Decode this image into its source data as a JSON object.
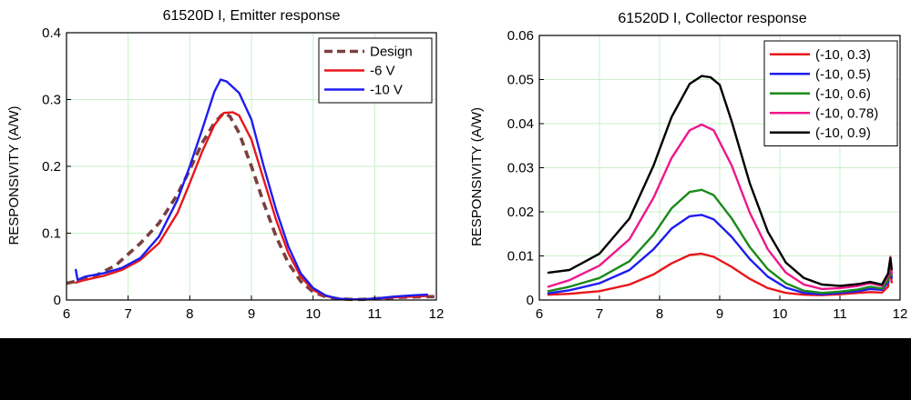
{
  "chart_data": [
    {
      "type": "line",
      "title": "61520D I, Emitter response",
      "xlabel": "",
      "ylabel": "RESPONSIVITY (A/W)",
      "xlim": [
        6,
        12
      ],
      "ylim": [
        0,
        0.4
      ],
      "xticks": [
        6,
        7,
        8,
        9,
        10,
        11,
        12
      ],
      "yticks": [
        0,
        0.1,
        0.2,
        0.3,
        0.4
      ],
      "xtick_labels": [
        "6",
        "7",
        "8",
        "9",
        "10",
        "11",
        "12"
      ],
      "ytick_labels": [
        "0",
        "0.1",
        "0.2",
        "0.3",
        "0.4"
      ],
      "grid": true,
      "legend": "top-right",
      "series": [
        {
          "name": "Design",
          "color": "#7b3f3f",
          "dash": true,
          "x": [
            6.0,
            6.4,
            6.8,
            7.2,
            7.5,
            7.8,
            8.0,
            8.2,
            8.4,
            8.55,
            8.65,
            8.8,
            9.0,
            9.2,
            9.4,
            9.6,
            9.8,
            10.0,
            10.2,
            10.4,
            10.6,
            10.8,
            11.0,
            11.4,
            11.8,
            12.0
          ],
          "y": [
            0.025,
            0.033,
            0.052,
            0.085,
            0.115,
            0.158,
            0.195,
            0.235,
            0.265,
            0.28,
            0.275,
            0.25,
            0.2,
            0.145,
            0.095,
            0.055,
            0.028,
            0.012,
            0.005,
            0.002,
            0.001,
            0.001,
            0.002,
            0.004,
            0.005,
            0.005
          ]
        },
        {
          "name": "-6 V",
          "color": "#e8161b",
          "dash": false,
          "x": [
            6.15,
            6.3,
            6.6,
            6.9,
            7.2,
            7.5,
            7.8,
            8.0,
            8.2,
            8.4,
            8.55,
            8.7,
            8.8,
            9.0,
            9.2,
            9.4,
            9.6,
            9.8,
            10.0,
            10.2,
            10.4,
            10.6,
            10.8,
            11.0,
            11.3,
            11.6,
            11.85
          ],
          "y": [
            0.026,
            0.03,
            0.036,
            0.045,
            0.06,
            0.085,
            0.13,
            0.175,
            0.222,
            0.262,
            0.28,
            0.281,
            0.276,
            0.24,
            0.18,
            0.12,
            0.07,
            0.035,
            0.015,
            0.006,
            0.002,
            0.001,
            0.001,
            0.002,
            0.004,
            0.005,
            0.006
          ]
        },
        {
          "name": "-10 V",
          "color": "#1d1df0",
          "dash": false,
          "x": [
            6.15,
            6.18,
            6.3,
            6.6,
            6.9,
            7.2,
            7.5,
            7.8,
            8.0,
            8.2,
            8.4,
            8.5,
            8.6,
            8.8,
            9.0,
            9.2,
            9.4,
            9.6,
            9.8,
            10.0,
            10.2,
            10.4,
            10.6,
            10.8,
            11.0,
            11.3,
            11.6,
            11.85
          ],
          "y": [
            0.045,
            0.03,
            0.035,
            0.04,
            0.048,
            0.063,
            0.095,
            0.15,
            0.2,
            0.255,
            0.312,
            0.33,
            0.327,
            0.31,
            0.27,
            0.2,
            0.135,
            0.08,
            0.04,
            0.018,
            0.007,
            0.002,
            0.001,
            0.001,
            0.002,
            0.005,
            0.007,
            0.008
          ]
        }
      ]
    },
    {
      "type": "line",
      "title": "61520D I, Collector response",
      "xlabel": "",
      "ylabel": "RESPONSIVITY (A/W)",
      "xlim": [
        6,
        12
      ],
      "ylim": [
        0,
        0.06
      ],
      "xticks": [
        6,
        7,
        8,
        9,
        10,
        11,
        12
      ],
      "yticks": [
        0,
        0.01,
        0.02,
        0.03,
        0.04,
        0.05,
        0.06
      ],
      "xtick_labels": [
        "6",
        "7",
        "8",
        "9",
        "10",
        "11",
        "12"
      ],
      "ytick_labels": [
        "0",
        "0.01",
        "0.02",
        "0.03",
        "0.04",
        "0.05",
        "0.06"
      ],
      "grid": true,
      "legend": "top-right",
      "series": [
        {
          "name": "(-10, 0.3)",
          "color": "#e8161b",
          "x": [
            6.15,
            6.5,
            7.0,
            7.5,
            7.9,
            8.2,
            8.5,
            8.7,
            8.9,
            9.2,
            9.5,
            9.8,
            10.1,
            10.4,
            10.7,
            11.0,
            11.3,
            11.5,
            11.7,
            11.8,
            11.83,
            11.86
          ],
          "y": [
            0.0012,
            0.0014,
            0.002,
            0.0035,
            0.0058,
            0.0083,
            0.0102,
            0.0105,
            0.0098,
            0.0075,
            0.0048,
            0.0027,
            0.0016,
            0.0012,
            0.0011,
            0.0013,
            0.0016,
            0.0018,
            0.0017,
            0.003,
            0.0075,
            0.004
          ]
        },
        {
          "name": "(-10, 0.5)",
          "color": "#1d1df0",
          "x": [
            6.15,
            6.5,
            7.0,
            7.5,
            7.9,
            8.2,
            8.5,
            8.7,
            8.9,
            9.2,
            9.5,
            9.8,
            10.1,
            10.4,
            10.7,
            11.0,
            11.3,
            11.5,
            11.7,
            11.8,
            11.84,
            11.86
          ],
          "y": [
            0.0015,
            0.0022,
            0.0038,
            0.0068,
            0.0115,
            0.0162,
            0.019,
            0.0193,
            0.0183,
            0.0143,
            0.0093,
            0.0053,
            0.0028,
            0.0016,
            0.0013,
            0.0016,
            0.002,
            0.0025,
            0.0023,
            0.004,
            0.0085,
            0.005
          ]
        },
        {
          "name": "(-10, 0.6)",
          "color": "#1a8a1a",
          "x": [
            6.15,
            6.5,
            7.0,
            7.5,
            7.9,
            8.2,
            8.5,
            8.7,
            8.9,
            9.2,
            9.5,
            9.8,
            10.1,
            10.4,
            10.7,
            11.0,
            11.3,
            11.5,
            11.7,
            11.8,
            11.84,
            11.86
          ],
          "y": [
            0.002,
            0.003,
            0.005,
            0.0088,
            0.0148,
            0.0208,
            0.0245,
            0.025,
            0.0238,
            0.0185,
            0.012,
            0.007,
            0.0038,
            0.0021,
            0.0016,
            0.0019,
            0.0024,
            0.003,
            0.0026,
            0.0045,
            0.0088,
            0.0055
          ]
        },
        {
          "name": "(-10, 0.78)",
          "color": "#f0178c",
          "x": [
            6.15,
            6.5,
            7.0,
            7.5,
            7.9,
            8.2,
            8.5,
            8.7,
            8.9,
            9.2,
            9.5,
            9.8,
            10.1,
            10.4,
            10.7,
            11.0,
            11.3,
            11.5,
            11.7,
            11.8,
            11.84,
            11.86
          ],
          "y": [
            0.003,
            0.0045,
            0.0078,
            0.0138,
            0.0232,
            0.0322,
            0.0385,
            0.0398,
            0.0385,
            0.0305,
            0.0198,
            0.0115,
            0.0062,
            0.0035,
            0.0025,
            0.0027,
            0.0032,
            0.0038,
            0.0032,
            0.0055,
            0.0098,
            0.006
          ]
        },
        {
          "name": "(-10, 0.9)",
          "color": "#000000",
          "x": [
            6.15,
            6.5,
            7.0,
            7.5,
            7.9,
            8.2,
            8.5,
            8.7,
            8.85,
            9.0,
            9.2,
            9.5,
            9.8,
            10.1,
            10.4,
            10.7,
            11.0,
            11.3,
            11.5,
            11.7,
            11.8,
            11.84,
            11.86
          ],
          "y": [
            0.0062,
            0.0068,
            0.0105,
            0.0185,
            0.0305,
            0.0415,
            0.049,
            0.0508,
            0.0505,
            0.0488,
            0.0405,
            0.0265,
            0.0155,
            0.0085,
            0.005,
            0.0035,
            0.0032,
            0.0036,
            0.0041,
            0.0035,
            0.006,
            0.0095,
            0.007
          ]
        }
      ]
    }
  ]
}
